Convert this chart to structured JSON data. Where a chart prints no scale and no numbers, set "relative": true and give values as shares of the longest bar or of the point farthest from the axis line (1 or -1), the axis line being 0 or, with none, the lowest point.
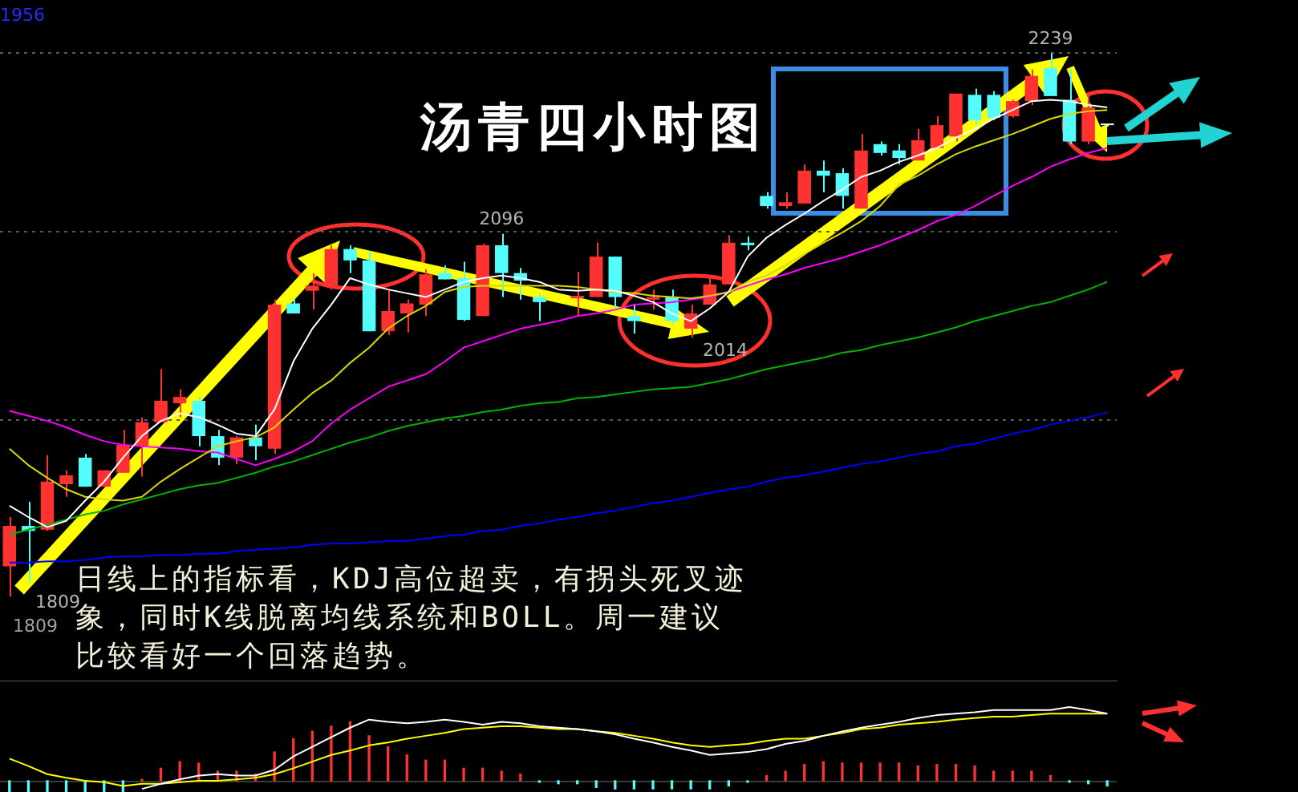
{
  "chart_data": [
    {
      "type": "candlestick",
      "title": "汤青四小时图",
      "categories": [
        null,
        null,
        null,
        null,
        null,
        null,
        null,
        null,
        null,
        null,
        null,
        null,
        null,
        null,
        null,
        null,
        null,
        null,
        null,
        null,
        null,
        null,
        null,
        null,
        null,
        null,
        null,
        null,
        null,
        null,
        null,
        null,
        null,
        null,
        null,
        null,
        null,
        null,
        null,
        null,
        null,
        null,
        null,
        null,
        null,
        null,
        null,
        null,
        null,
        null,
        null,
        null,
        null,
        null,
        null,
        null,
        null,
        null,
        null
      ],
      "ohlc": [
        [
          1833,
          1872,
          1809,
          1865
        ],
        [
          1865,
          1884,
          1820,
          1861
        ],
        [
          1862,
          1921,
          1861,
          1900
        ],
        [
          1898,
          1909,
          1888,
          1905
        ],
        [
          1919,
          1922,
          1896,
          1896
        ],
        [
          1896,
          1909,
          1896,
          1909
        ],
        [
          1907,
          1941,
          1907,
          1929
        ],
        [
          1928,
          1951,
          1904,
          1947
        ],
        [
          1947,
          1989,
          1947,
          1964
        ],
        [
          1962,
          1973,
          1951,
          1967
        ],
        [
          1964,
          1967,
          1928,
          1936
        ],
        [
          1936,
          1941,
          1913,
          1919
        ],
        [
          1919,
          1936,
          1914,
          1935
        ],
        [
          1935,
          1945,
          1917,
          1928
        ],
        [
          1926,
          2044,
          1922,
          2040
        ],
        [
          2041,
          2045,
          2033,
          2033
        ],
        [
          2051,
          2065,
          2036,
          2055
        ],
        [
          2055,
          2087,
          2052,
          2084
        ],
        [
          2084,
          2087,
          2065,
          2075
        ],
        [
          2075,
          2082,
          2019,
          2019
        ],
        [
          2019,
          2052,
          2016,
          2035
        ],
        [
          2033,
          2044,
          2018,
          2041
        ],
        [
          2040,
          2068,
          2031,
          2064
        ],
        [
          2065,
          2071,
          2060,
          2060
        ],
        [
          2061,
          2074,
          2027,
          2028
        ],
        [
          2031,
          2088,
          2031,
          2087
        ],
        [
          2087,
          2096,
          2046,
          2065
        ],
        [
          2065,
          2069,
          2044,
          2059
        ],
        [
          2046,
          2049,
          2027,
          2042
        ],
        null,
        [
          2045,
          2066,
          2031,
          2047
        ],
        [
          2046,
          2089,
          2046,
          2078
        ],
        [
          2078,
          2078,
          2037,
          2046
        ],
        [
          2031,
          2040,
          2017,
          2027
        ],
        [
          2044,
          2052,
          2036,
          2046
        ],
        [
          2046,
          2052,
          2025,
          2027
        ],
        [
          2021,
          2040,
          2014,
          2033
        ],
        [
          2040,
          2061,
          2040,
          2056
        ],
        [
          2056,
          2095,
          2056,
          2089
        ],
        [
          2089,
          2094,
          2083,
          2087
        ],
        [
          2126,
          2129,
          2116,
          2118
        ],
        [
          2118,
          2129,
          2116,
          2121
        ],
        [
          2120,
          2151,
          2120,
          2146
        ],
        [
          2146,
          2154,
          2129,
          2142
        ],
        [
          2144,
          2148,
          2116,
          2126
        ],
        [
          2116,
          2175,
          2116,
          2162
        ],
        [
          2167,
          2169,
          2158,
          2160
        ],
        [
          2162,
          2167,
          2151,
          2156
        ],
        [
          2154,
          2179,
          2154,
          2170
        ],
        [
          2164,
          2189,
          2164,
          2182
        ],
        [
          2173,
          2207,
          2169,
          2207
        ],
        [
          2206,
          2211,
          2182,
          2186
        ],
        [
          2206,
          2209,
          2186,
          2188
        ],
        [
          2189,
          2202,
          2188,
          2201
        ],
        [
          2201,
          2226,
          2198,
          2221
        ],
        [
          2227,
          2239,
          2205,
          2205
        ],
        [
          2202,
          2226,
          2167,
          2169
        ],
        [
          2169,
          2206,
          2167,
          2196
        ],
        [
          2182,
          2183,
          2181,
          2182
        ]
      ],
      "colors": [
        "#ff3232",
        "#54fcfc",
        "#ff3232",
        "#ff3232",
        "#54fcfc",
        "#ff3232",
        "#ff3232",
        "#ff3232",
        "#ff3232",
        "#ff3232",
        "#54fcfc",
        "#54fcfc",
        "#ff3232",
        "#54fcfc",
        "#ff3232",
        "#54fcfc",
        "#ff3232",
        "#ff3232",
        "#54fcfc",
        "#54fcfc",
        "#ff3232",
        "#ff3232",
        "#ff3232",
        "#54fcfc",
        "#54fcfc",
        "#ff3232",
        "#54fcfc",
        "#54fcfc",
        "#54fcfc",
        null,
        "#ff3232",
        "#ff3232",
        "#54fcfc",
        "#54fcfc",
        "#ff3232",
        "#54fcfc",
        "#ff3232",
        "#ff3232",
        "#ff3232",
        "#54fcfc",
        "#54fcfc",
        "#ff3232",
        "#ff3232",
        "#54fcfc",
        "#54fcfc",
        "#ff3232",
        "#54fcfc",
        "#54fcfc",
        "#ff3232",
        "#ff3232",
        "#ff3232",
        "#54fcfc",
        "#54fcfc",
        "#ff3232",
        "#ff3232",
        "#54fcfc",
        "#54fcfc",
        "#ff3232",
        "#ffffff"
      ],
      "series": [
        {
          "type": "line",
          "color": "#ffffff",
          "values": [
            1881,
            1872,
            1864,
            1869,
            1885,
            1900,
            1919,
            1936,
            1948,
            1954,
            1951,
            1945,
            1938,
            1936,
            1957,
            1995,
            2021,
            2040,
            2061,
            2056,
            2052,
            2049,
            2046,
            2052,
            2058,
            2061,
            2063,
            2061,
            2058,
            2052,
            2051,
            2052,
            2051,
            2047,
            2042,
            2033,
            2027,
            2037,
            2050,
            2078,
            2093,
            2103,
            2112,
            2122,
            2131,
            2141,
            2146,
            2153,
            2158,
            2164,
            2172,
            2179,
            2187,
            2194,
            2201,
            2202,
            2201,
            2198,
            2196
          ]
        },
        {
          "type": "line",
          "color": "#d8d800",
          "values": [
            1926,
            1913,
            1903,
            1894,
            1888,
            1886,
            1885,
            1888,
            1900,
            1910,
            1919,
            1928,
            1932,
            1935,
            1943,
            1957,
            1970,
            1980,
            1994,
            2006,
            2021,
            2031,
            2039,
            2050,
            2054,
            2055,
            2055,
            2055,
            2055,
            2055,
            2054,
            2052,
            2050,
            2049,
            2047,
            2046,
            2045,
            2047,
            2050,
            2058,
            2063,
            2071,
            2080,
            2089,
            2097,
            2106,
            2118,
            2135,
            2142,
            2151,
            2159,
            2165,
            2170,
            2175,
            2181,
            2187,
            2191,
            2193,
            2194
          ]
        },
        {
          "type": "line",
          "color": "#ff00ff",
          "values": [
            1956,
            1952,
            1948,
            1943,
            1937,
            1932,
            1929,
            1928,
            1927,
            1926,
            1924,
            1923,
            1918,
            1913,
            1918,
            1924,
            1932,
            1946,
            1957,
            1966,
            1975,
            1980,
            1985,
            1995,
            2006,
            2011,
            2016,
            2021,
            2024,
            2027,
            2031,
            2033,
            2036,
            2040,
            2041,
            2042,
            2044,
            2046,
            2050,
            2055,
            2060,
            2064,
            2069,
            2073,
            2077,
            2082,
            2087,
            2093,
            2099,
            2106,
            2111,
            2118,
            2126,
            2134,
            2141,
            2149,
            2155,
            2160,
            2164
          ]
        },
        {
          "type": "line",
          "color": "#00b400",
          "values": [
            1858,
            1862,
            1866,
            1870,
            1874,
            1877,
            1882,
            1886,
            1890,
            1894,
            1897,
            1899,
            1903,
            1907,
            1912,
            1916,
            1921,
            1926,
            1931,
            1935,
            1940,
            1944,
            1947,
            1950,
            1952,
            1955,
            1957,
            1960,
            1962,
            1963,
            1966,
            1967,
            1969,
            1971,
            1973,
            1974,
            1975,
            1978,
            1981,
            1985,
            1989,
            1992,
            1995,
            1998,
            2002,
            2004,
            2008,
            2011,
            2014,
            2018,
            2022,
            2027,
            2031,
            2035,
            2039,
            2042,
            2047,
            2052,
            2058
          ]
        },
        {
          "type": "line",
          "color": "#0000ff",
          "values": [
            1836,
            1836,
            1837,
            1837,
            1838,
            1840,
            1841,
            1841,
            1842,
            1842,
            1843,
            1843,
            1845,
            1846,
            1847,
            1848,
            1850,
            1851,
            1851,
            1852,
            1853,
            1853,
            1855,
            1857,
            1858,
            1861,
            1862,
            1865,
            1867,
            1870,
            1872,
            1875,
            1877,
            1880,
            1883,
            1885,
            1888,
            1891,
            1894,
            1896,
            1900,
            1903,
            1905,
            1908,
            1911,
            1914,
            1916,
            1919,
            1922,
            1924,
            1928,
            1930,
            1934,
            1938,
            1941,
            1945,
            1948,
            1951,
            1955
          ]
        }
      ],
      "ylim": [
        1742,
        2281
      ],
      "yticks": [
        {
          "value": 2239,
          "label": null
        },
        {
          "value": 2098,
          "label": null
        },
        {
          "value": 1949,
          "label": null
        }
      ],
      "grid": "y",
      "tick_labels": false,
      "marker": "none",
      "line_style": "solid",
      "annotations": [
        "1956",
        "日线上的指标看，KDJ高位超卖，有拐头死叉迹象，同时K线脱离均线系统和BOLL。周一建议比较看好一个回落趋势。",
        "1809",
        "2014",
        "1809",
        {
          "text": "2096",
          "y": 2096
        },
        {
          "text": "2239",
          "y": 2239
        }
      ]
    },
    {
      "type": "bar",
      "relative": true,
      "categories": [
        null,
        null,
        null,
        null,
        null,
        null,
        null,
        null,
        null,
        null,
        null,
        null,
        null,
        null,
        null,
        null,
        null,
        null,
        null,
        null,
        null,
        null,
        null,
        null,
        null,
        null,
        null,
        null,
        null,
        null,
        null,
        null,
        null,
        null,
        null,
        null,
        null,
        null,
        null,
        null,
        null,
        null,
        null,
        null,
        null,
        null,
        null,
        null,
        null,
        null,
        null,
        null,
        null,
        null,
        null,
        null,
        null,
        null,
        null
      ],
      "series": [
        {
          "type": "bar",
          "values": [
            -0.15,
            -0.15,
            -0.15,
            -0.15,
            -0.15,
            -0.15,
            -0.15,
            0.02,
            0.17,
            0.26,
            0.24,
            0.13,
            0.13,
            0.09,
            0.39,
            0.57,
            0.67,
            0.74,
            0.8,
            0.61,
            0.46,
            0.35,
            0.28,
            0.28,
            0.17,
            0.17,
            0.13,
            0.09,
            -0.02,
            -0.04,
            -0.04,
            -0.09,
            -0.11,
            -0.11,
            -0.11,
            -0.11,
            -0.11,
            -0.11,
            -0.07,
            -0.02,
            0.07,
            0.13,
            0.22,
            0.26,
            0.24,
            0.24,
            0.24,
            0.24,
            0.2,
            0.22,
            0.22,
            0.2,
            0.13,
            0.13,
            0.13,
            0.07,
            -0.02,
            -0.04,
            -0.07
          ],
          "colors": [
            "#54fcfc",
            "#54fcfc",
            "#54fcfc",
            "#54fcfc",
            "#54fcfc",
            "#54fcfc",
            "#54fcfc",
            "#ff3232",
            "#ff3232",
            "#ff3232",
            "#ff3232",
            "#ff3232",
            "#ff3232",
            "#ff3232",
            "#ff3232",
            "#ff3232",
            "#ff3232",
            "#ff3232",
            "#ff3232",
            "#ff3232",
            "#ff3232",
            "#ff3232",
            "#ff3232",
            "#ff3232",
            "#ff3232",
            "#ff3232",
            "#ff3232",
            "#ff3232",
            "#54fcfc",
            "#54fcfc",
            "#54fcfc",
            "#54fcfc",
            "#54fcfc",
            "#54fcfc",
            "#54fcfc",
            "#54fcfc",
            "#54fcfc",
            "#54fcfc",
            "#54fcfc",
            "#54fcfc",
            "#ff3232",
            "#ff3232",
            "#ff3232",
            "#ff3232",
            "#ff3232",
            "#ff3232",
            "#ff3232",
            "#ff3232",
            "#ff3232",
            "#ff3232",
            "#ff3232",
            "#ff3232",
            "#ff3232",
            "#ff3232",
            "#ff3232",
            "#ff3232",
            "#54fcfc",
            "#54fcfc",
            "#54fcfc"
          ]
        },
        {
          "type": "line",
          "color": "#ffffff",
          "values": [
            null,
            null,
            null,
            null,
            null,
            null,
            null,
            -0.11,
            -0.04,
            0.02,
            0.07,
            0.09,
            0.07,
            0.07,
            0.15,
            0.33,
            0.46,
            0.59,
            0.72,
            0.83,
            0.8,
            0.78,
            0.8,
            0.83,
            0.8,
            0.76,
            0.8,
            0.78,
            0.74,
            0.72,
            0.7,
            0.67,
            0.63,
            0.57,
            0.52,
            0.46,
            0.41,
            0.35,
            0.37,
            0.39,
            0.43,
            0.5,
            0.54,
            0.61,
            0.67,
            0.72,
            0.76,
            0.8,
            0.85,
            0.89,
            0.91,
            0.93,
            0.96,
            0.96,
            0.96,
            0.96,
            1,
            0.96,
            0.91
          ]
        },
        {
          "type": "line",
          "color": "#ffff00",
          "values": [
            0.3,
            0.2,
            0.09,
            0.04,
            0,
            -0.02,
            -0.07,
            -0.04,
            -0.04,
            -0.02,
            0,
            0,
            0.02,
            0.04,
            0.09,
            0.17,
            0.26,
            0.35,
            0.41,
            0.48,
            0.52,
            0.57,
            0.61,
            0.65,
            0.7,
            0.72,
            0.74,
            0.74,
            0.72,
            0.7,
            0.7,
            0.67,
            0.65,
            0.61,
            0.57,
            0.52,
            0.48,
            0.46,
            0.48,
            0.5,
            0.54,
            0.57,
            0.57,
            0.61,
            0.65,
            0.7,
            0.72,
            0.76,
            0.78,
            0.8,
            0.83,
            0.85,
            0.87,
            0.87,
            0.89,
            0.91,
            0.91,
            0.91,
            0.91
          ]
        }
      ],
      "marker": "none"
    }
  ]
}
